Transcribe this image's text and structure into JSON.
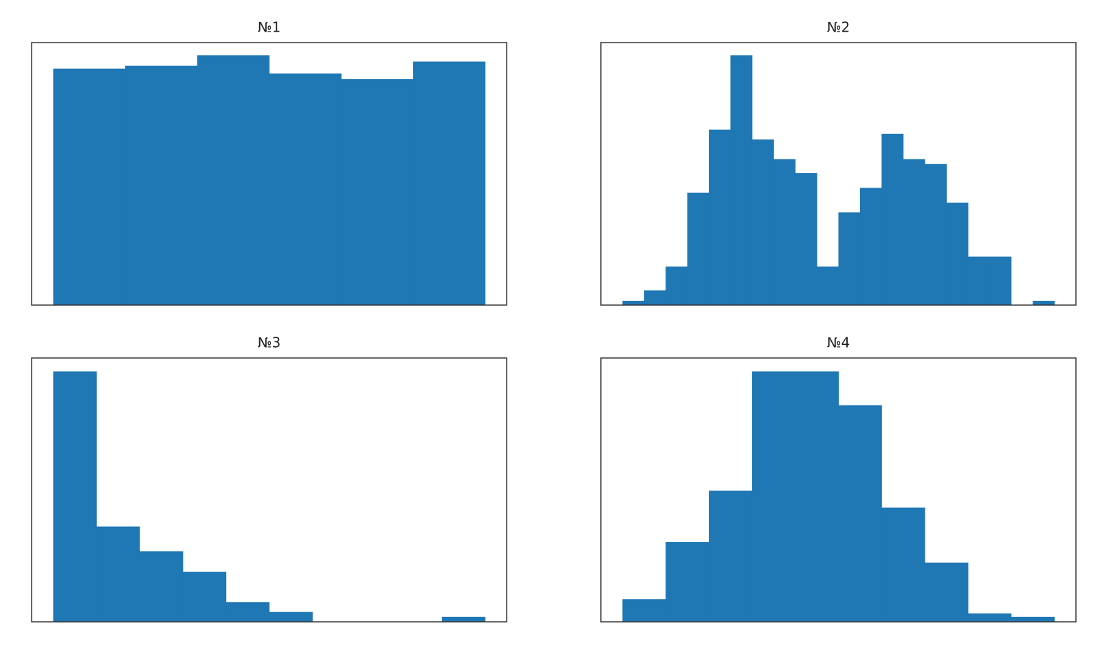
{
  "chart_data": [
    {
      "type": "histogram",
      "title": "№1",
      "color": "#1f77b4",
      "bins": [
        0,
        1,
        2,
        3,
        4,
        5,
        6
      ],
      "values": [
        337,
        341,
        356,
        330,
        322,
        347
      ],
      "xlim": [
        -0.3,
        6.3
      ],
      "ylim": [
        0,
        374
      ]
    },
    {
      "type": "histogram",
      "title": "№2",
      "color": "#1f77b4",
      "bins": [
        0,
        1,
        2,
        3,
        4,
        5,
        6,
        7,
        8,
        9,
        10,
        11,
        12,
        13,
        14,
        15,
        16,
        17,
        18,
        19,
        20
      ],
      "values": [
        6,
        21,
        55,
        160,
        250,
        356,
        236,
        208,
        188,
        55,
        132,
        167,
        244,
        208,
        201,
        146,
        69,
        69,
        0,
        6
      ],
      "xlim": [
        -1,
        21
      ],
      "ylim": [
        0,
        374
      ]
    },
    {
      "type": "histogram",
      "title": "№3",
      "color": "#1f77b4",
      "bins": [
        0,
        1,
        2,
        3,
        4,
        5,
        6,
        7,
        8,
        9,
        10
      ],
      "values": [
        355,
        135,
        100,
        71,
        28,
        14,
        0,
        0,
        0,
        7
      ],
      "xlim": [
        -0.5,
        10.5
      ],
      "ylim": [
        0,
        374
      ]
    },
    {
      "type": "histogram",
      "title": "№4",
      "color": "#1f77b4",
      "bins": [
        0,
        1,
        2,
        3,
        4,
        5,
        6,
        7,
        8,
        9,
        10
      ],
      "values": [
        32,
        113,
        186,
        355,
        355,
        307,
        162,
        84,
        12,
        7
      ],
      "xlim": [
        -0.5,
        10.5
      ],
      "ylim": [
        0,
        374
      ]
    }
  ]
}
